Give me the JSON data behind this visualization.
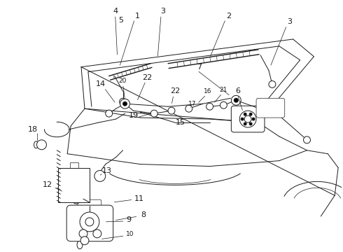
{
  "bg_color": "#ffffff",
  "line_color": "#1a1a1a",
  "fig_width": 4.9,
  "fig_height": 3.6,
  "dpi": 100,
  "font_size": 8,
  "font_size_small": 6.5
}
